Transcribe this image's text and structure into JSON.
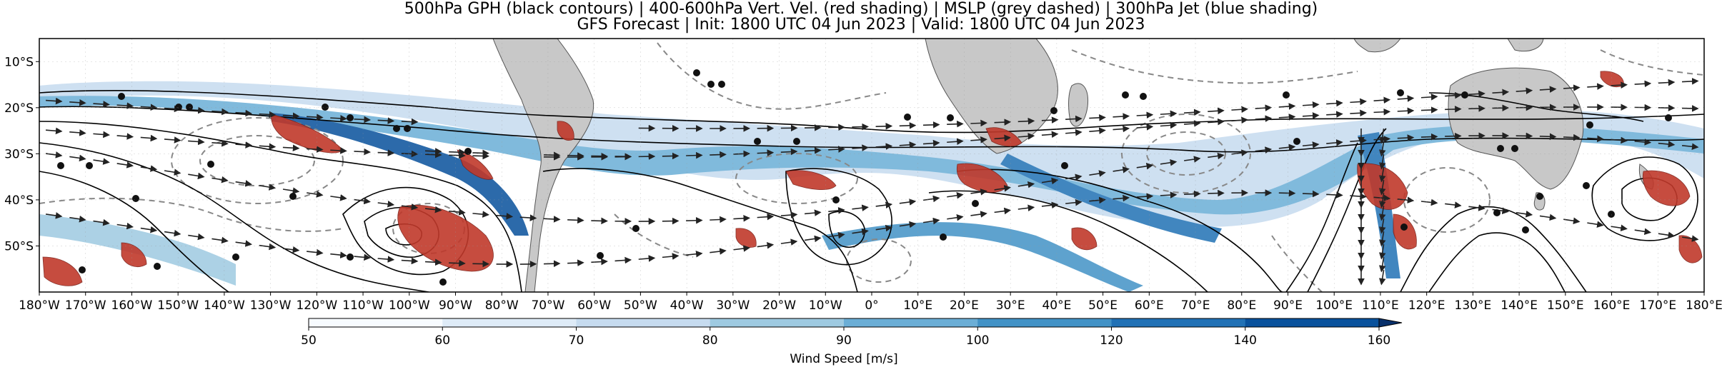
{
  "title_line1": "500hPa GPH (black contours) | 400-600hPa Vert. Vel. (red shading) | MSLP (grey dashed) | 300hPa Jet (blue shading)",
  "title_line2": "GFS Forecast | Init: 1800 UTC 04 Jun 2023 | Valid: 1800 UTC 04 Jun 2023",
  "lat_ticks": [
    "10°S",
    "20°S",
    "30°S",
    "40°S",
    "50°S"
  ],
  "lat_values": [
    -10,
    -20,
    -30,
    -40,
    -50
  ],
  "lon_ticks": [
    "180°W",
    "170°W",
    "160°W",
    "150°W",
    "140°W",
    "130°W",
    "120°W",
    "110°W",
    "100°W",
    "90°W",
    "80°W",
    "70°W",
    "60°W",
    "50°W",
    "40°W",
    "30°W",
    "20°W",
    "10°W",
    "0°",
    "10°E",
    "20°E",
    "30°E",
    "40°E",
    "50°E",
    "60°E",
    "70°E",
    "80°E",
    "90°E",
    "100°E",
    "110°E",
    "120°E",
    "130°E",
    "140°E",
    "150°E",
    "160°E",
    "170°E",
    "180°E"
  ],
  "lon_values": [
    -180,
    -170,
    -160,
    -150,
    -140,
    -130,
    -120,
    -110,
    -100,
    -90,
    -80,
    -70,
    -60,
    -50,
    -40,
    -30,
    -20,
    -10,
    0,
    10,
    20,
    30,
    40,
    50,
    60,
    70,
    80,
    90,
    100,
    110,
    120,
    130,
    140,
    150,
    160,
    170,
    180
  ],
  "map_extent": {
    "lon": [
      -180,
      180
    ],
    "lat": [
      -5,
      -60
    ]
  },
  "colorbar": {
    "label": "Wind Speed [m/s]",
    "ticks": [
      "50",
      "60",
      "70",
      "80",
      "90",
      "100",
      "120",
      "140",
      "160"
    ],
    "tick_values": [
      50,
      60,
      70,
      80,
      90,
      100,
      120,
      140,
      160
    ],
    "colors": [
      "#f7fbff",
      "#deebf7",
      "#c6dbef",
      "#9ecae1",
      "#6baed6",
      "#4292c6",
      "#2171b5",
      "#08519c",
      "#08306b"
    ]
  },
  "colors": {
    "land": "#c8c8c8",
    "jet_light": "#c6dbef",
    "jet_mid": "#6baed6",
    "jet_dark": "#08519c",
    "uplift": "#c0392b",
    "contour": "#000000",
    "mslp": "#888888"
  }
}
